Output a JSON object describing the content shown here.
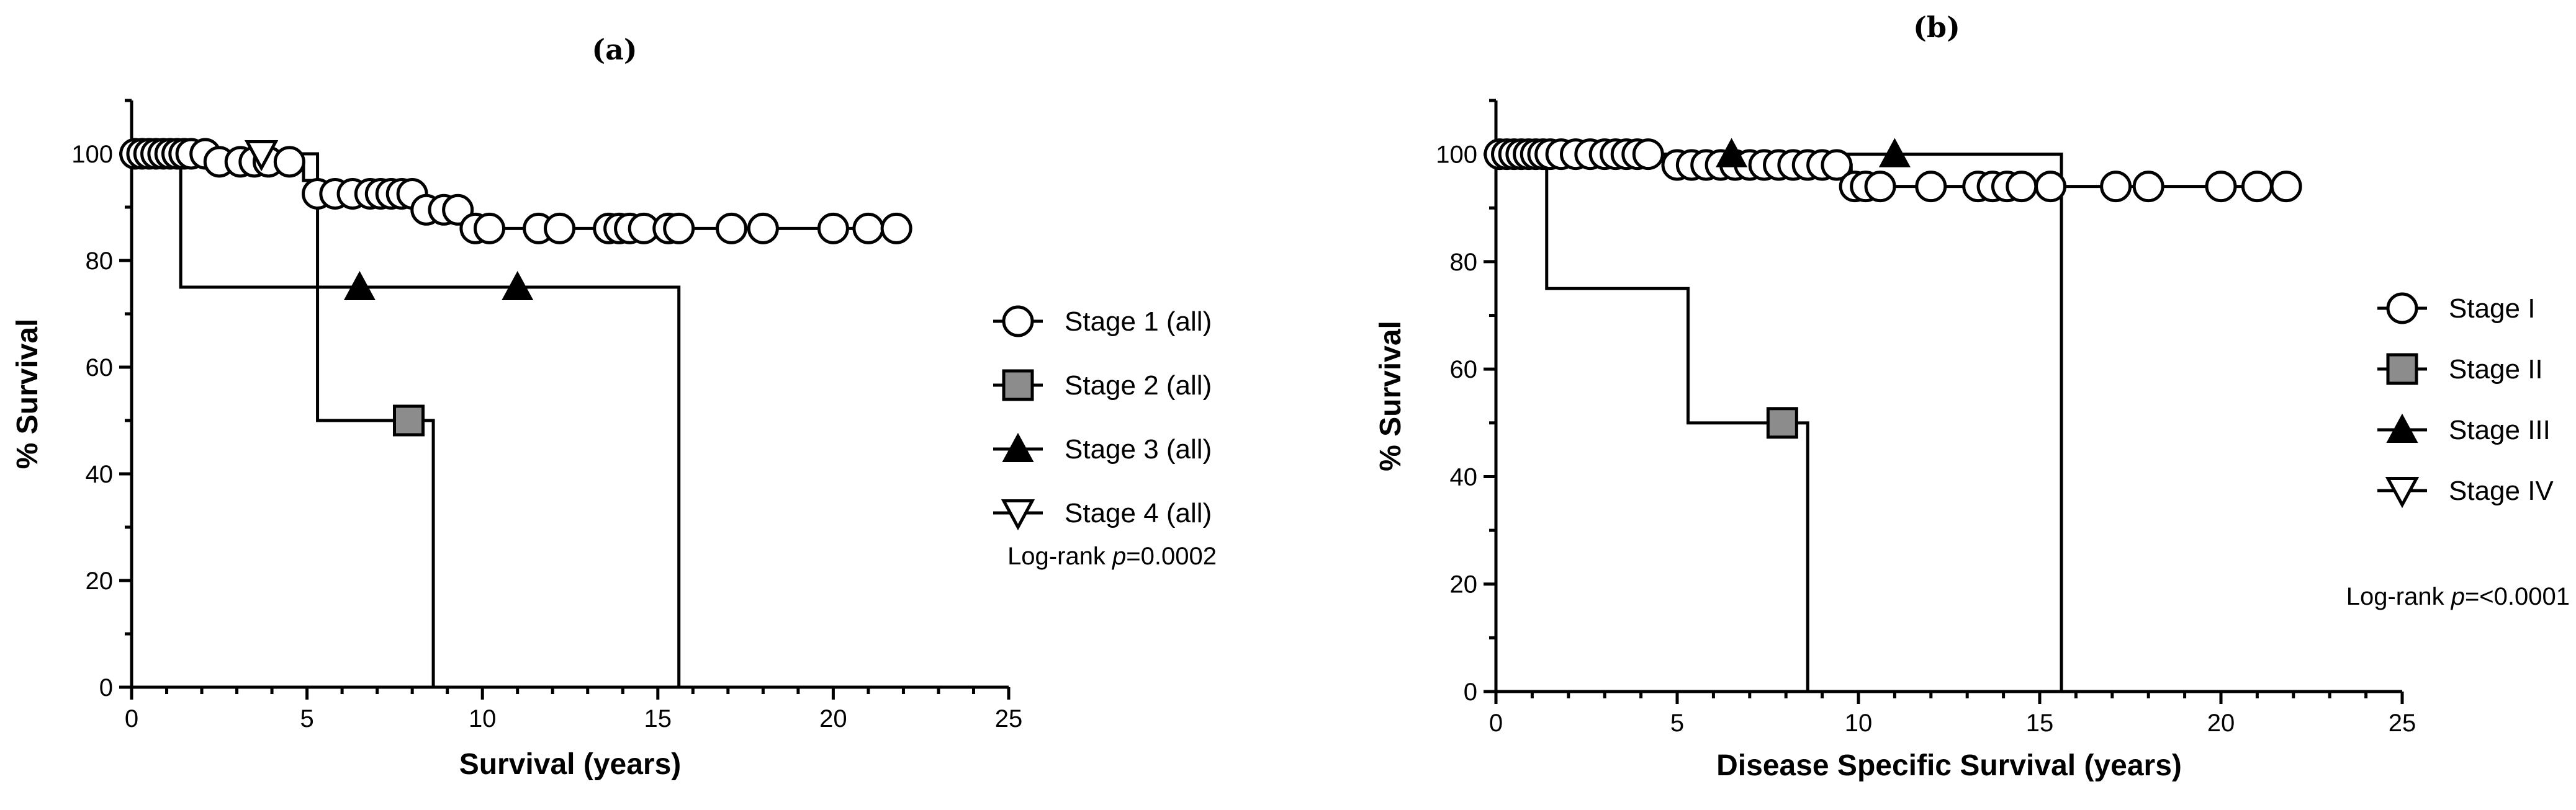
{
  "chart_data": [
    {
      "type": "line",
      "subtype": "kaplan-meier",
      "panel_label": "(a)",
      "xlabel": "Survival (years)",
      "ylabel": "% Survival",
      "xlim": [
        0,
        25
      ],
      "ylim": [
        0,
        110
      ],
      "xticks": [
        0,
        5,
        10,
        15,
        20,
        25
      ],
      "yticks": [
        0,
        20,
        40,
        60,
        80,
        100
      ],
      "grid": false,
      "legend_position": "right",
      "annotation": {
        "prefix": "Log-rank ",
        "italic": "p",
        "suffix": "=0.0002"
      },
      "series": [
        {
          "name": "Stage 1 (all)",
          "marker": "circle-open",
          "steps": [
            [
              0,
              100
            ],
            [
              1.8,
              100
            ],
            [
              2.4,
              98.5
            ],
            [
              4.6,
              98.5
            ],
            [
              4.9,
              95
            ],
            [
              5.2,
              92.5
            ],
            [
              6.9,
              92.5
            ],
            [
              8.3,
              89.5
            ],
            [
              9.6,
              86
            ],
            [
              21.9,
              86
            ]
          ],
          "censored": [
            [
              0.1,
              100
            ],
            [
              0.3,
              100
            ],
            [
              0.5,
              100
            ],
            [
              0.7,
              100
            ],
            [
              0.9,
              100
            ],
            [
              1.1,
              100
            ],
            [
              1.3,
              100
            ],
            [
              1.5,
              100
            ],
            [
              1.7,
              100
            ],
            [
              2.1,
              100
            ],
            [
              2.5,
              98.5
            ],
            [
              3.1,
              98.5
            ],
            [
              3.5,
              98.5
            ],
            [
              3.9,
              98.5
            ],
            [
              4.5,
              98.5
            ],
            [
              5.3,
              92.5
            ],
            [
              5.8,
              92.5
            ],
            [
              6.3,
              92.5
            ],
            [
              6.8,
              92.5
            ],
            [
              7.1,
              92.5
            ],
            [
              7.4,
              92.5
            ],
            [
              7.7,
              92.5
            ],
            [
              8.0,
              92.5
            ],
            [
              8.4,
              89.5
            ],
            [
              8.9,
              89.5
            ],
            [
              9.3,
              89.5
            ],
            [
              9.8,
              86
            ],
            [
              10.2,
              86
            ],
            [
              11.6,
              86
            ],
            [
              12.2,
              86
            ],
            [
              13.6,
              86
            ],
            [
              13.9,
              86
            ],
            [
              14.2,
              86
            ],
            [
              14.6,
              86
            ],
            [
              15.3,
              86
            ],
            [
              15.6,
              86
            ],
            [
              17.1,
              86
            ],
            [
              18.0,
              86
            ],
            [
              20.0,
              86
            ],
            [
              21.0,
              86
            ],
            [
              21.8,
              86
            ]
          ]
        },
        {
          "name": "Stage 2 (all)",
          "marker": "square-filled",
          "color": "#8c8c8c",
          "steps": [
            [
              0,
              100
            ],
            [
              5.3,
              100
            ],
            [
              5.3,
              50
            ],
            [
              8.6,
              50
            ],
            [
              8.6,
              0
            ]
          ],
          "censored": [
            [
              7.9,
              50
            ]
          ]
        },
        {
          "name": "Stage 3 (all)",
          "marker": "triangle-up-filled",
          "steps": [
            [
              0,
              100
            ],
            [
              1.4,
              100
            ],
            [
              1.4,
              75
            ],
            [
              15.6,
              75
            ],
            [
              15.6,
              0
            ]
          ],
          "censored": [
            [
              6.5,
              75
            ],
            [
              11.0,
              75
            ]
          ]
        },
        {
          "name": "Stage 4 (all)",
          "marker": "triangle-down-open",
          "steps": [
            [
              0,
              100
            ],
            [
              3.7,
              100
            ]
          ],
          "censored": [
            [
              3.7,
              100
            ]
          ]
        }
      ]
    },
    {
      "type": "line",
      "subtype": "kaplan-meier",
      "panel_label": "(b)",
      "xlabel": "Disease Specific Survival (years)",
      "ylabel": "% Survival",
      "xlim": [
        0,
        25
      ],
      "ylim": [
        0,
        110
      ],
      "xticks": [
        0,
        5,
        10,
        15,
        20,
        25
      ],
      "yticks": [
        0,
        20,
        40,
        60,
        80,
        100
      ],
      "grid": false,
      "legend_position": "right",
      "annotation": {
        "prefix": "Log-rank ",
        "italic": "p",
        "suffix": "=<0.0001"
      },
      "series": [
        {
          "name": "Stage I",
          "marker": "circle-open",
          "steps": [
            [
              0,
              100
            ],
            [
              4.6,
              100
            ],
            [
              4.9,
              98
            ],
            [
              9.6,
              98
            ],
            [
              9.8,
              94
            ],
            [
              21.9,
              94
            ]
          ],
          "censored": [
            [
              0.1,
              100
            ],
            [
              0.3,
              100
            ],
            [
              0.5,
              100
            ],
            [
              0.7,
              100
            ],
            [
              0.9,
              100
            ],
            [
              1.1,
              100
            ],
            [
              1.3,
              100
            ],
            [
              1.5,
              100
            ],
            [
              1.8,
              100
            ],
            [
              2.2,
              100
            ],
            [
              2.6,
              100
            ],
            [
              3.0,
              100
            ],
            [
              3.3,
              100
            ],
            [
              3.6,
              100
            ],
            [
              3.9,
              100
            ],
            [
              4.2,
              100
            ],
            [
              5.0,
              98
            ],
            [
              5.4,
              98
            ],
            [
              5.8,
              98
            ],
            [
              6.2,
              98
            ],
            [
              6.6,
              98
            ],
            [
              7.0,
              98
            ],
            [
              7.4,
              98
            ],
            [
              7.8,
              98
            ],
            [
              8.2,
              98
            ],
            [
              8.6,
              98
            ],
            [
              9.0,
              98
            ],
            [
              9.4,
              98
            ],
            [
              9.9,
              94
            ],
            [
              10.2,
              94
            ],
            [
              10.6,
              94
            ],
            [
              12.0,
              94
            ],
            [
              13.3,
              94
            ],
            [
              13.7,
              94
            ],
            [
              14.1,
              94
            ],
            [
              14.5,
              94
            ],
            [
              15.3,
              94
            ],
            [
              17.1,
              94
            ],
            [
              18.0,
              94
            ],
            [
              20.0,
              94
            ],
            [
              21.0,
              94
            ],
            [
              21.8,
              94
            ]
          ]
        },
        {
          "name": "Stage II",
          "marker": "square-filled",
          "color": "#8c8c8c",
          "steps": [
            [
              0,
              100
            ],
            [
              1.4,
              100
            ],
            [
              1.4,
              75
            ],
            [
              5.3,
              75
            ],
            [
              5.3,
              50
            ],
            [
              8.6,
              50
            ],
            [
              8.6,
              0
            ]
          ],
          "censored": [
            [
              7.9,
              50
            ]
          ]
        },
        {
          "name": "Stage III",
          "marker": "triangle-up-filled",
          "steps": [
            [
              0,
              100
            ],
            [
              15.6,
              100
            ],
            [
              15.6,
              0
            ]
          ],
          "censored": [
            [
              6.5,
              100
            ],
            [
              11.0,
              100
            ]
          ]
        },
        {
          "name": "Stage IV",
          "marker": "triangle-down-open",
          "steps": [],
          "censored": []
        }
      ]
    }
  ]
}
